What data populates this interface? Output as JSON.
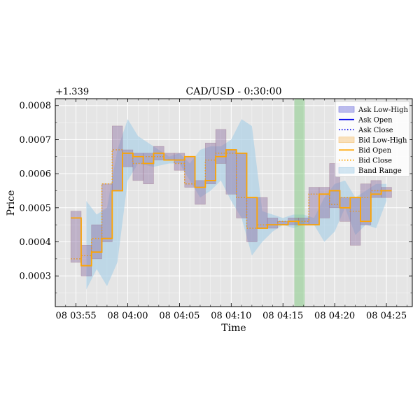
{
  "chart_data": {
    "type": "line",
    "title": "CAD/USD - 0:30:00",
    "xlabel": "Time",
    "ylabel": "Price",
    "y_offset_label": "+1.339",
    "y_offset": 1.339,
    "ylim": [
      0.00021,
      0.00082
    ],
    "xlim_minutes": [
      0,
      34.5
    ],
    "grid": true,
    "legend_position": "upper right",
    "x_tick_labels": [
      "08 03:55",
      "08 04:00",
      "08 04:05",
      "08 04:10",
      "08 04:15",
      "08 04:20",
      "08 04:25"
    ],
    "x_tick_minutes": [
      2,
      7,
      12,
      17,
      22,
      27,
      32
    ],
    "y_tick_labels": [
      "0.0003",
      "0.0004",
      "0.0005",
      "0.0006",
      "0.0007",
      "0.0008"
    ],
    "y_tick_values": [
      0.0003,
      0.0004,
      0.0005,
      0.0006,
      0.0007,
      0.0008
    ],
    "highlight_span_minutes": [
      23.1,
      24.1
    ],
    "colors": {
      "ask_range": "#7b7be0",
      "ask_line": "#0000ee",
      "bid_range": "#f5c37a",
      "bid_line": "#ffa500",
      "band": "#a9cfe7",
      "highlight": "#7fc97f",
      "bar_overlay": "#9c6a7c",
      "plot_bg": "#e5e5e5"
    },
    "legend": [
      {
        "label": "Ask Low-High",
        "kind": "patch",
        "color": "#7b7be0"
      },
      {
        "label": "Ask Open",
        "kind": "solid",
        "color": "#0000ee"
      },
      {
        "label": "Ask Close",
        "kind": "dotted",
        "color": "#0000ee"
      },
      {
        "label": "Bid Low-High",
        "kind": "patch",
        "color": "#f5c37a"
      },
      {
        "label": "Bid Open",
        "kind": "solid",
        "color": "#ffa500"
      },
      {
        "label": "Bid Close",
        "kind": "dotted",
        "color": "#ffa500"
      },
      {
        "label": "Band Range",
        "kind": "patch",
        "color": "#a9cfe7"
      }
    ],
    "bars": [
      {
        "minute": 2,
        "open": 0.00047,
        "close": 0.00035,
        "low": 0.00034,
        "high": 0.00049
      },
      {
        "minute": 3,
        "open": 0.00033,
        "close": 0.00036,
        "low": 0.0003,
        "high": 0.00039
      },
      {
        "minute": 4,
        "open": 0.00037,
        "close": 0.00041,
        "low": 0.00035,
        "high": 0.00045
      },
      {
        "minute": 5,
        "open": 0.00041,
        "close": 0.00057,
        "low": 0.0004,
        "high": 0.00057
      },
      {
        "minute": 6,
        "open": 0.00055,
        "close": 0.00067,
        "low": 0.00055,
        "high": 0.00074
      },
      {
        "minute": 7,
        "open": 0.00066,
        "close": 0.00066,
        "low": 0.00062,
        "high": 0.00067
      },
      {
        "minute": 8,
        "open": 0.00065,
        "close": 0.00063,
        "low": 0.00058,
        "high": 0.00066
      },
      {
        "minute": 9,
        "open": 0.00063,
        "close": 0.00065,
        "low": 0.00057,
        "high": 0.00066
      },
      {
        "minute": 10,
        "open": 0.00066,
        "close": 0.00065,
        "low": 0.00064,
        "high": 0.00068
      },
      {
        "minute": 11,
        "open": 0.00064,
        "close": 0.00064,
        "low": 0.00064,
        "high": 0.00066
      },
      {
        "minute": 12,
        "open": 0.00064,
        "close": 0.00063,
        "low": 0.00061,
        "high": 0.00066
      },
      {
        "minute": 13,
        "open": 0.00065,
        "close": 0.00057,
        "low": 0.00056,
        "high": 0.00065
      },
      {
        "minute": 14,
        "open": 0.00056,
        "close": 0.00056,
        "low": 0.00051,
        "high": 0.00058
      },
      {
        "minute": 15,
        "open": 0.00058,
        "close": 0.00064,
        "low": 0.00057,
        "high": 0.00069
      },
      {
        "minute": 16,
        "open": 0.00065,
        "close": 0.00066,
        "low": 0.00063,
        "high": 0.00073
      },
      {
        "minute": 17,
        "open": 0.00067,
        "close": 0.00066,
        "low": 0.00054,
        "high": 0.00067
      },
      {
        "minute": 18,
        "open": 0.00066,
        "close": 0.00053,
        "low": 0.00047,
        "high": 0.00066
      },
      {
        "minute": 19,
        "open": 0.00053,
        "close": 0.00044,
        "low": 0.0004,
        "high": 0.00053
      },
      {
        "minute": 20,
        "open": 0.00044,
        "close": 0.00045,
        "low": 0.00044,
        "high": 0.00053
      },
      {
        "minute": 21,
        "open": 0.00045,
        "close": 0.00045,
        "low": 0.00044,
        "high": 0.00047
      },
      {
        "minute": 22,
        "open": 0.00045,
        "close": 0.00046,
        "low": 0.00045,
        "high": 0.00046
      },
      {
        "minute": 23,
        "open": 0.00046,
        "close": 0.00046,
        "low": 0.00045,
        "high": 0.00047
      },
      {
        "minute": 24,
        "open": 0.00045,
        "close": 0.00046,
        "low": 0.00045,
        "high": 0.00047
      },
      {
        "minute": 25,
        "open": 0.00045,
        "close": 0.00054,
        "low": 0.00045,
        "high": 0.00056
      },
      {
        "minute": 26,
        "open": 0.00054,
        "close": 0.00054,
        "low": 0.00047,
        "high": 0.00056
      },
      {
        "minute": 27,
        "open": 0.00055,
        "close": 0.00051,
        "low": 0.0005,
        "high": 0.00063
      },
      {
        "minute": 28,
        "open": 0.0005,
        "close": 0.00053,
        "low": 0.00046,
        "high": 0.00053
      },
      {
        "minute": 29,
        "open": 0.00053,
        "close": 0.00049,
        "low": 0.00039,
        "high": 0.00053
      },
      {
        "minute": 30,
        "open": 0.00046,
        "close": 0.00053,
        "low": 0.00045,
        "high": 0.00057
      },
      {
        "minute": 31,
        "open": 0.00054,
        "close": 0.00055,
        "low": 0.00053,
        "high": 0.00058
      },
      {
        "minute": 32,
        "open": 0.00055,
        "close": 0.00055,
        "low": 0.00053,
        "high": 0.00056
      }
    ],
    "band": [
      {
        "minute": 3.0,
        "low": 0.00026,
        "high": 0.00052
      },
      {
        "minute": 4.0,
        "low": 0.00032,
        "high": 0.00048
      },
      {
        "minute": 5.0,
        "low": 0.00027,
        "high": 0.0005
      },
      {
        "minute": 6.0,
        "low": 0.00034,
        "high": 0.00067
      },
      {
        "minute": 7.0,
        "low": 0.00058,
        "high": 0.00076
      },
      {
        "minute": 8.0,
        "low": 0.00063,
        "high": 0.00071
      },
      {
        "minute": 9.5,
        "low": 0.00062,
        "high": 0.00068
      },
      {
        "minute": 11.0,
        "low": 0.00063,
        "high": 0.00065
      },
      {
        "minute": 12.0,
        "low": 0.00063,
        "high": 0.00066
      },
      {
        "minute": 13.0,
        "low": 0.00058,
        "high": 0.00063
      },
      {
        "minute": 14.0,
        "low": 0.00053,
        "high": 0.00067
      },
      {
        "minute": 15.0,
        "low": 0.00055,
        "high": 0.00068
      },
      {
        "minute": 16.0,
        "low": 0.00058,
        "high": 0.00068
      },
      {
        "minute": 17.0,
        "low": 0.00052,
        "high": 0.0007
      },
      {
        "minute": 18.0,
        "low": 0.00047,
        "high": 0.00076
      },
      {
        "minute": 19.0,
        "low": 0.00036,
        "high": 0.00074
      },
      {
        "minute": 20.0,
        "low": 0.0004,
        "high": 0.00049
      },
      {
        "minute": 21.0,
        "low": 0.00043,
        "high": 0.00048
      },
      {
        "minute": 22.0,
        "low": 0.00045,
        "high": 0.00047
      },
      {
        "minute": 23.0,
        "low": 0.00044,
        "high": 0.00048
      },
      {
        "minute": 24.0,
        "low": 0.00045,
        "high": 0.00048
      },
      {
        "minute": 25.0,
        "low": 0.00045,
        "high": 0.00047
      },
      {
        "minute": 26.0,
        "low": 0.0004,
        "high": 0.00053
      },
      {
        "minute": 27.0,
        "low": 0.00043,
        "high": 0.00057
      },
      {
        "minute": 28.0,
        "low": 0.0005,
        "high": 0.00058
      },
      {
        "minute": 29.0,
        "low": 0.00042,
        "high": 0.00053
      },
      {
        "minute": 30.0,
        "low": 0.00045,
        "high": 0.00055
      },
      {
        "minute": 31.0,
        "low": 0.00044,
        "high": 0.00057
      },
      {
        "minute": 32.0,
        "low": 0.00052,
        "high": 0.00057
      }
    ]
  }
}
